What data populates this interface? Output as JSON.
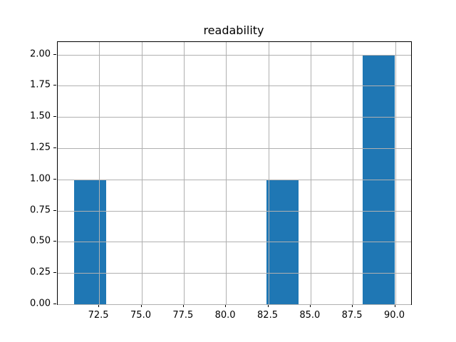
{
  "chart_data": {
    "type": "bar",
    "subtype": "histogram",
    "title": "readability",
    "xlabel": "",
    "ylabel": "",
    "bin_edges": [
      71.0,
      72.9,
      74.8,
      76.7,
      78.6,
      80.5,
      82.4,
      84.3,
      86.2,
      88.1,
      90.0
    ],
    "counts": [
      1,
      0,
      0,
      0,
      0,
      0,
      1,
      0,
      0,
      2
    ],
    "xlim": [
      70.05,
      90.95
    ],
    "ylim": [
      0,
      2.1
    ],
    "x_ticks": [
      72.5,
      75.0,
      77.5,
      80.0,
      82.5,
      85.0,
      87.5,
      90.0
    ],
    "x_tick_labels": [
      "72.5",
      "75.0",
      "77.5",
      "80.0",
      "82.5",
      "85.0",
      "87.5",
      "90.0"
    ],
    "y_ticks": [
      0.0,
      0.25,
      0.5,
      0.75,
      1.0,
      1.25,
      1.5,
      1.75,
      2.0
    ],
    "y_tick_labels": [
      "0.00",
      "0.25",
      "0.50",
      "0.75",
      "1.00",
      "1.25",
      "1.50",
      "1.75",
      "2.00"
    ],
    "grid": true,
    "grid_over_bars": true,
    "legend": false,
    "colors": {
      "bar": "#1f77b4",
      "grid": "#b0b0b0",
      "spine": "#000000",
      "background": "#ffffff",
      "text": "#000000"
    }
  }
}
